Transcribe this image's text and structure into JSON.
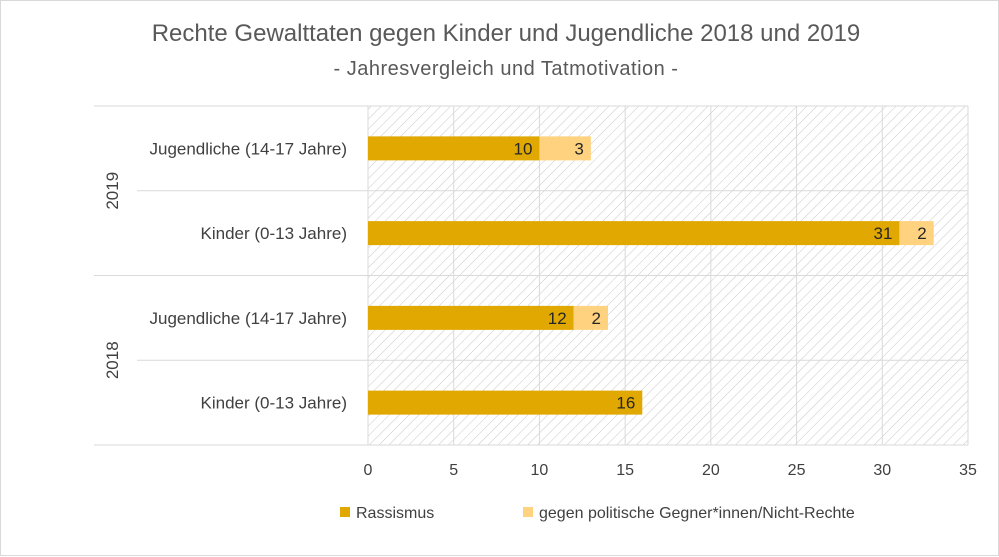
{
  "chart_data": {
    "type": "bar",
    "orientation": "horizontal",
    "stacked": true,
    "title": "Rechte Gewalttaten gegen Kinder und Jugendliche 2018 und 2019",
    "subtitle": "- Jahresvergleich und Tatmotivation -",
    "groups": [
      {
        "label": "2019",
        "categories": [
          "Jugendliche (14-17 Jahre)",
          "Kinder (0-13 Jahre)"
        ]
      },
      {
        "label": "2018",
        "categories": [
          "Jugendliche (14-17 Jahre)",
          "Kinder (0-13 Jahre)"
        ]
      }
    ],
    "rows": [
      {
        "group": "2019",
        "category": "Jugendliche (14-17 Jahre)",
        "values": [
          10,
          3
        ]
      },
      {
        "group": "2019",
        "category": "Kinder (0-13 Jahre)",
        "values": [
          31,
          2
        ]
      },
      {
        "group": "2018",
        "category": "Jugendliche (14-17 Jahre)",
        "values": [
          12,
          2
        ]
      },
      {
        "group": "2018",
        "category": "Kinder (0-13 Jahre)",
        "values": [
          16,
          0
        ]
      }
    ],
    "series": [
      {
        "name": "Rassismus",
        "color": "#e0a800"
      },
      {
        "name": "gegen politische Gegner*innen/Nicht-Rechte",
        "color": "#ffd27f"
      }
    ],
    "xlim": [
      0,
      35
    ],
    "xticks": [
      "0",
      "5",
      "10",
      "15",
      "20",
      "25",
      "30",
      "35"
    ],
    "grid": true,
    "legend_position": "bottom"
  }
}
